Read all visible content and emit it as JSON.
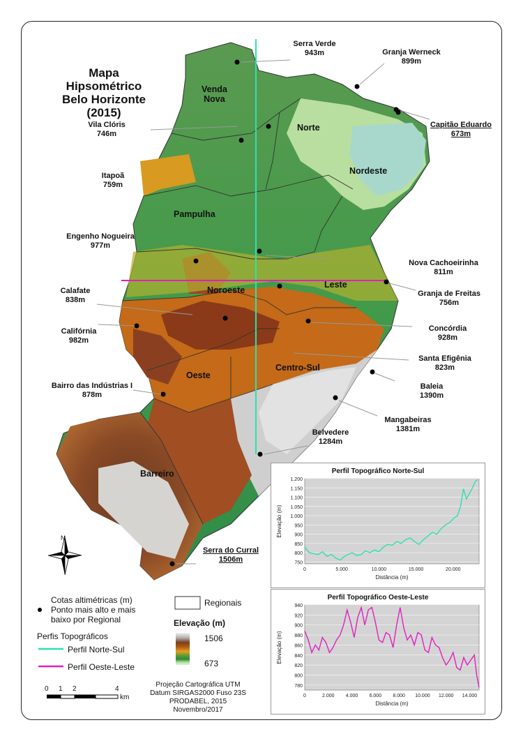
{
  "title": {
    "line1": "Mapa Hipsométrico",
    "line2": "Belo Horizonte",
    "line3": "(2015)"
  },
  "regions": {
    "venda_nova": [
      "Venda",
      "Nova"
    ],
    "norte": "Norte",
    "nordeste": "Nordeste",
    "pampulha": "Pampulha",
    "noroeste": "Noroeste",
    "leste": "Leste",
    "oeste": "Oeste",
    "centro_sul": "Centro-Sul",
    "barreiro": "Barreiro"
  },
  "places": [
    {
      "name": "Serra Verde",
      "elev": "943m"
    },
    {
      "name": "Granja Werneck",
      "elev": "899m"
    },
    {
      "name": "Capitão Eduardo",
      "elev": "673m"
    },
    {
      "name": "Vila Clóris",
      "elev": "746m"
    },
    {
      "name": "Itapoã",
      "elev": "759m"
    },
    {
      "name": "Engenho Nogueira",
      "elev": "977m"
    },
    {
      "name": "Nova Cachoeirinha",
      "elev": "811m"
    },
    {
      "name": "Calafate",
      "elev": "838m"
    },
    {
      "name": "Granja de Freitas",
      "elev": "756m"
    },
    {
      "name": "Califórnia",
      "elev": "982m"
    },
    {
      "name": "Concórdia",
      "elev": "928m"
    },
    {
      "name": "Santa Efigênia",
      "elev": "823m"
    },
    {
      "name": "Baleia",
      "elev": "1390m"
    },
    {
      "name": "Bairro das Indústrias I",
      "elev": "878m"
    },
    {
      "name": "Mangabeiras",
      "elev": "1381m"
    },
    {
      "name": "Belvedere",
      "elev": "1284m"
    },
    {
      "name": "Serra do Curral",
      "elev": "1506m"
    }
  ],
  "compass": "N",
  "legend": {
    "cotas": "Cotas altimétricas (m)",
    "ponto_line1": "Ponto mais alto e mais",
    "ponto_line2": "baixo por Regional",
    "perfis": "Perfis Topográficos",
    "norte_sul": "Perfil Norte-Sul",
    "oeste_leste": "Perfil Oeste-Leste",
    "regionais": "Regionais",
    "elevacao": "Elevação (m)",
    "max": "1506",
    "min": "673"
  },
  "scale": {
    "ticks": [
      "0",
      "1",
      "2",
      "4"
    ],
    "unit": "km"
  },
  "credits": [
    "Projeção Cartográfica UTM",
    "Datum SIRGAS2000 Fuso 23S",
    "PRODABEL, 2015",
    "Novembro/2017"
  ],
  "colors": {
    "norte_sul": "#2ee0b0",
    "oeste_leste": "#e020c0",
    "plot_bg": "#d4d4d4"
  },
  "chart_data": [
    {
      "type": "line",
      "title": "Perfil Topográfico Norte-Sul",
      "xlabel": "Distância (m)",
      "ylabel": "Elevação (m)",
      "x_ticks": [
        "0",
        "5.000",
        "10.000",
        "15.000",
        "20.000"
      ],
      "y_ticks": [
        "750",
        "800",
        "850",
        "900",
        "950",
        "1.000",
        "1.050",
        "1.100",
        "1.150",
        "1.200"
      ],
      "xlim": [
        0,
        23500
      ],
      "ylim": [
        740,
        1200
      ],
      "series": [
        {
          "x": [
            0,
            600,
            1200,
            1800,
            2400,
            3000,
            3600,
            4200,
            4800,
            5200,
            5800,
            6400,
            7000,
            7600,
            8200,
            8800,
            9400,
            10000,
            10600,
            11200,
            11800,
            12400,
            13000,
            13600,
            14200,
            14800,
            15400,
            16000,
            16600,
            17200,
            17800,
            18400,
            19000,
            19600,
            20200,
            20600,
            21000,
            21400,
            21800,
            22200,
            22600,
            23000,
            23300
          ],
          "y": [
            830,
            800,
            795,
            790,
            805,
            780,
            790,
            770,
            760,
            775,
            790,
            800,
            785,
            790,
            810,
            800,
            815,
            805,
            830,
            845,
            840,
            860,
            850,
            870,
            880,
            860,
            845,
            870,
            890,
            910,
            900,
            930,
            950,
            965,
            990,
            1000,
            1050,
            1145,
            1090,
            1120,
            1150,
            1185,
            1195
          ]
        }
      ]
    },
    {
      "type": "line",
      "title": "Perfil Topográfico Oeste-Leste",
      "xlabel": "Distância (m)",
      "ylabel": "Elevação (m)",
      "x_ticks": [
        "0",
        "2.000",
        "4.000",
        "6.000",
        "8.000",
        "10.000",
        "12.000",
        "14.000"
      ],
      "y_ticks": [
        "780",
        "800",
        "820",
        "840",
        "860",
        "880",
        "900",
        "920",
        "940"
      ],
      "xlim": [
        0,
        14800
      ],
      "ylim": [
        770,
        940
      ],
      "series": [
        {
          "x": [
            0,
            300,
            600,
            900,
            1200,
            1500,
            1800,
            2100,
            2400,
            2700,
            3000,
            3300,
            3600,
            3900,
            4200,
            4500,
            4800,
            5100,
            5400,
            5700,
            6000,
            6300,
            6600,
            6900,
            7200,
            7500,
            7800,
            8100,
            8400,
            8700,
            9000,
            9300,
            9600,
            9900,
            10200,
            10500,
            10800,
            11100,
            11400,
            11700,
            12000,
            12300,
            12600,
            12900,
            13200,
            13500,
            13800,
            14100,
            14400,
            14600,
            14800
          ],
          "y": [
            888,
            870,
            845,
            860,
            850,
            875,
            865,
            845,
            855,
            870,
            880,
            900,
            930,
            905,
            875,
            915,
            935,
            900,
            930,
            935,
            905,
            870,
            865,
            885,
            880,
            855,
            900,
            935,
            895,
            870,
            880,
            860,
            885,
            880,
            850,
            845,
            875,
            860,
            855,
            835,
            820,
            830,
            845,
            815,
            810,
            835,
            820,
            830,
            840,
            800,
            775
          ]
        }
      ]
    }
  ]
}
